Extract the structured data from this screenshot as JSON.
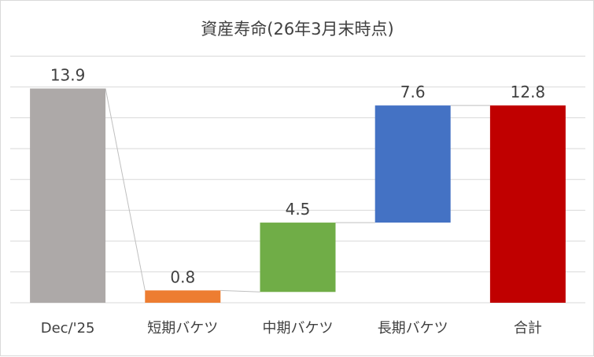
{
  "chart_data": {
    "type": "bar",
    "subtype": "waterfall",
    "title": "資産寿命(26年3月末時点)",
    "categories": [
      "Dec/'25",
      "短期バケツ",
      "中期バケツ",
      "長期バケツ",
      "合計"
    ],
    "values": [
      13.9,
      0.8,
      4.5,
      7.6,
      12.8
    ],
    "bases": [
      0,
      0,
      0.7,
      5.2,
      0
    ],
    "value_labels": [
      "13.9",
      "0.8",
      "4.5",
      "7.6",
      "12.8"
    ],
    "colors": [
      "#ADA9A8",
      "#ED7D31",
      "#70AD47",
      "#4472C4",
      "#C00000"
    ],
    "ylim": [
      0,
      16
    ],
    "grid": true,
    "legend": "none"
  }
}
